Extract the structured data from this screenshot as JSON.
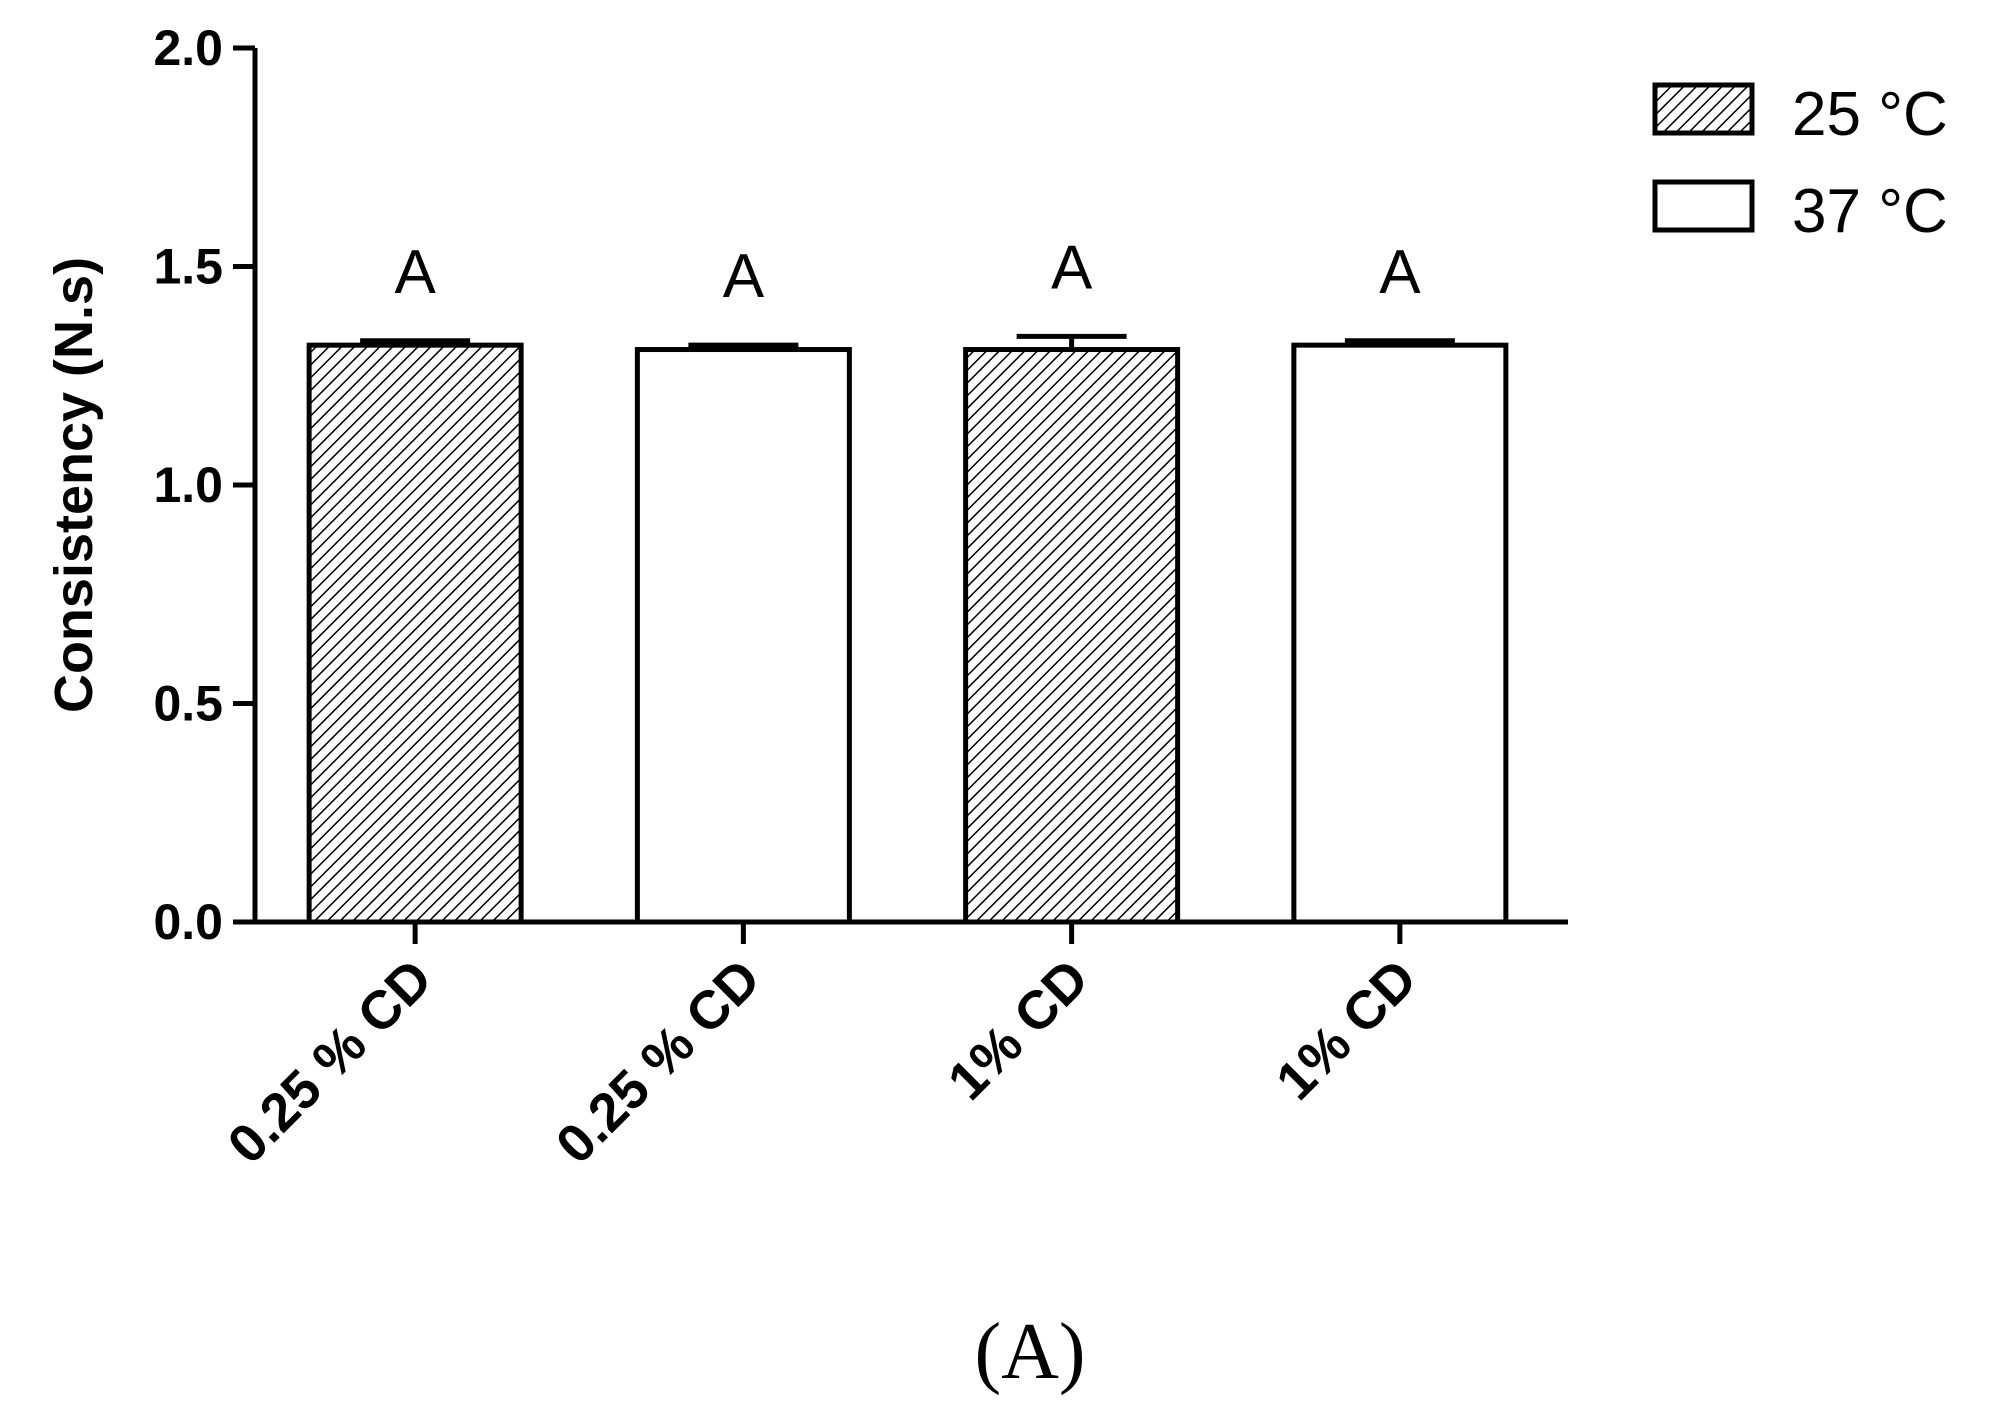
{
  "chart_data": {
    "type": "bar",
    "panel_label": "(A)",
    "ylabel": "Consistency (N.s)",
    "ylim": [
      0,
      2.0
    ],
    "yticks": [
      "0.0",
      "0.5",
      "1.0",
      "1.5",
      "2.0"
    ],
    "ytick_values": [
      0,
      0.5,
      1.0,
      1.5,
      2.0
    ],
    "categories": [
      "0.25 % CD",
      "0.25 % CD",
      "1% CD",
      "1% CD"
    ],
    "bars": [
      {
        "category": "0.25 % CD",
        "series": "25 °C",
        "value": 1.32,
        "error": 0.01,
        "significance": "A"
      },
      {
        "category": "0.25 % CD",
        "series": "37 °C",
        "value": 1.31,
        "error": 0.01,
        "significance": "A"
      },
      {
        "category": "1% CD",
        "series": "25 °C",
        "value": 1.31,
        "error": 0.03,
        "significance": "A"
      },
      {
        "category": "1% CD",
        "series": "37 °C",
        "value": 1.32,
        "error": 0.01,
        "significance": "A"
      }
    ],
    "legend": {
      "placement": "top-right",
      "entries": [
        {
          "name": "25 °C",
          "pattern": "hatched"
        },
        {
          "name": "37 °C",
          "pattern": "white"
        }
      ]
    },
    "grid": false,
    "colors": {
      "axis": "#000000",
      "hatch": "#000000",
      "fill_white": "#ffffff"
    }
  }
}
